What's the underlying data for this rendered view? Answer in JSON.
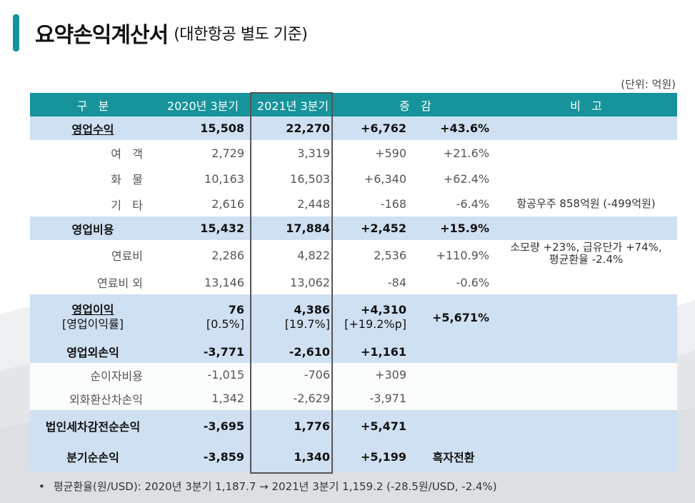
{
  "title": {
    "main": "요약손익계산서",
    "sub": "(대한항공 별도 기준)"
  },
  "unit": "(단위: 억원)",
  "headers": {
    "category": "구   분",
    "q2020": "2020년 3분기",
    "q2021": "2021년 3분기",
    "change": "증   감",
    "remarks": "비   고"
  },
  "rows": [
    {
      "label": "영업수익",
      "q2020": "15,508",
      "q2021": "22,270",
      "diff": "+6,762",
      "rate": "+43.6%",
      "note": ""
    },
    {
      "label": "여   객",
      "q2020": "2,729",
      "q2021": "3,319",
      "diff": "+590",
      "rate": "+21.6%",
      "note": ""
    },
    {
      "label": "화   물",
      "q2020": "10,163",
      "q2021": "16,503",
      "diff": "+6,340",
      "rate": "+62.4%",
      "note": ""
    },
    {
      "label": "기   타",
      "q2020": "2,616",
      "q2021": "2,448",
      "diff": "-168",
      "rate": "-6.4%",
      "note": "항공우주 858억원 (-499억원)"
    },
    {
      "label": "영업비용",
      "q2020": "15,432",
      "q2021": "17,884",
      "diff": "+2,452",
      "rate": "+15.9%",
      "note": ""
    },
    {
      "label": "연료비",
      "q2020": "2,286",
      "q2021": "4,822",
      "diff": "2,536",
      "rate": "+110.9%",
      "note": "소모량 +23%, 급유단가 +74%,",
      "note2": "평균환율 -2.4%"
    },
    {
      "label": "연료비 외",
      "q2020": "13,146",
      "q2021": "13,062",
      "diff": "-84",
      "rate": "-0.6%",
      "note": ""
    },
    {
      "label": "영업이익",
      "label2": "[영업이익률]",
      "q2020": "76",
      "q2020b": "[0.5%]",
      "q2021": "4,386",
      "q2021b": "[19.7%]",
      "diff": "+4,310",
      "diffb": "[+19.2%p]",
      "rate": "+5,671%",
      "note": ""
    },
    {
      "label": "영업외손익",
      "q2020": "-3,771",
      "q2021": "-2,610",
      "diff": "+1,161",
      "rate": "",
      "note": ""
    },
    {
      "label": "순이자비용",
      "q2020": "-1,015",
      "q2021": "-706",
      "diff": "+309",
      "rate": "",
      "note": ""
    },
    {
      "label": "외화환산차손익",
      "q2020": "1,342",
      "q2021": "-2,629",
      "diff": "-3,971",
      "rate": "",
      "note": ""
    },
    {
      "label": "법인세차감전순손익",
      "q2020": "-3,695",
      "q2021": "1,776",
      "diff": "+5,471",
      "rate": "",
      "note": ""
    },
    {
      "label": "분기순손익",
      "q2020": "-3,859",
      "q2021": "1,340",
      "diff": "+5,199",
      "rate": "흑자전환",
      "note": ""
    }
  ],
  "footnote": "평균환율(원/USD): 2020년 3분기 1,187.7 → 2021년 3분기 1,159.2 (-28.5원/USD, -2.4%)",
  "colors": {
    "accent": "#17939b",
    "highlight_row": "#cfe0f2"
  }
}
